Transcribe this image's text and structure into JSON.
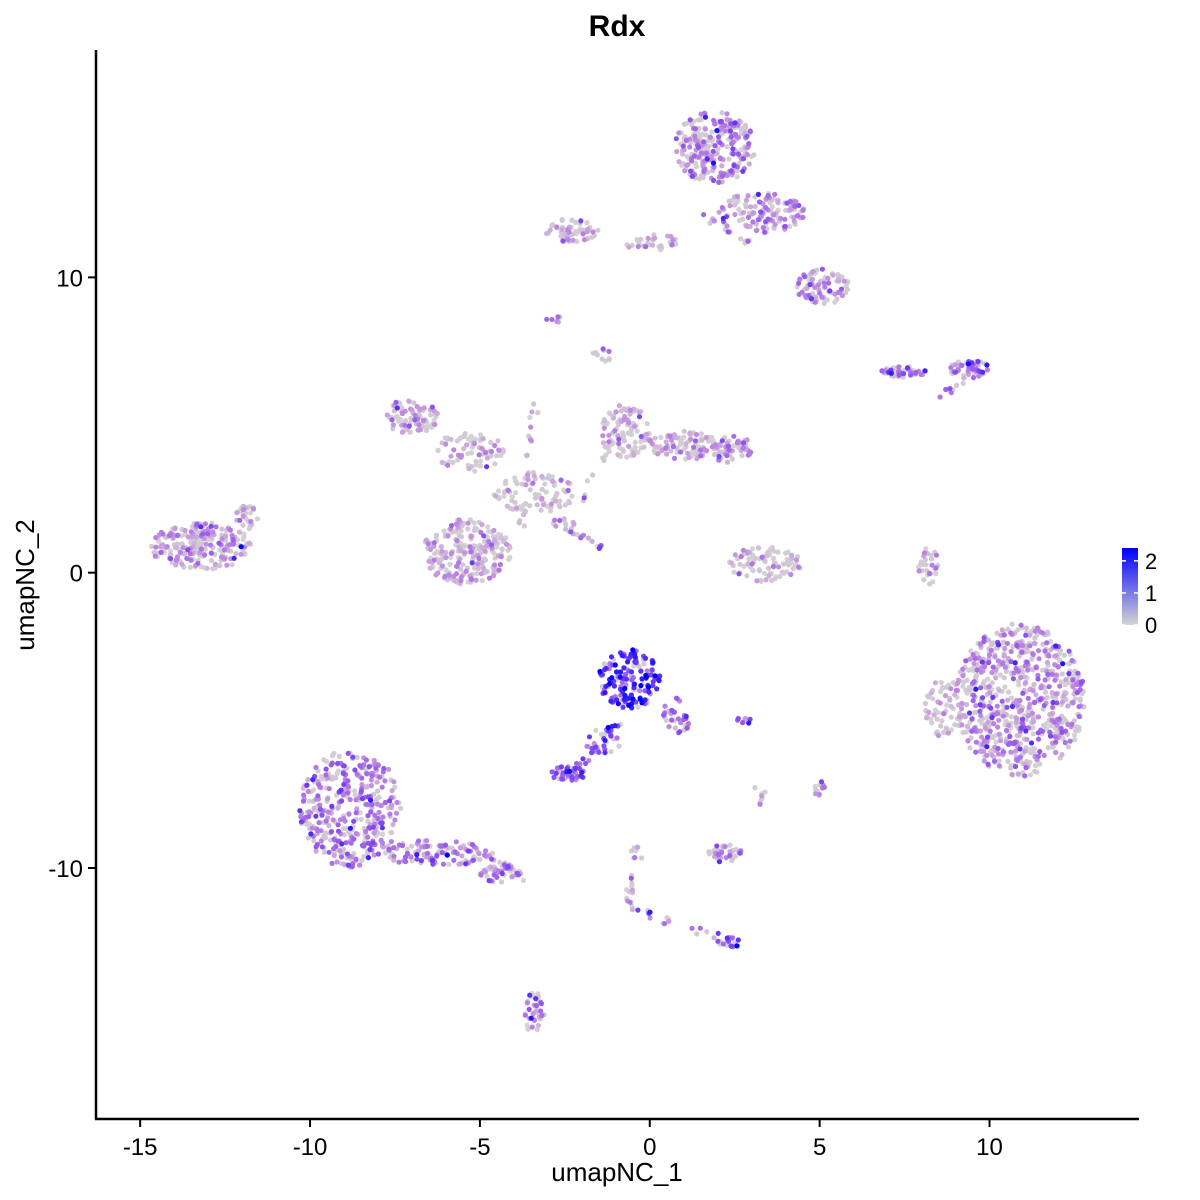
{
  "chart_data": {
    "type": "scatter",
    "title": "Rdx",
    "xlabel": "umapNC_1",
    "ylabel": "umapNC_2",
    "xlim": [
      -16.3,
      14.4
    ],
    "ylim": [
      -18.5,
      17.7
    ],
    "x_ticks": [
      -15,
      -10,
      -5,
      0,
      5,
      10
    ],
    "x_tick_labels": [
      "-15",
      "-10",
      "-5",
      "0",
      "5",
      "10"
    ],
    "y_ticks": [
      -10,
      0,
      10
    ],
    "y_tick_labels": [
      "-10",
      "0",
      "10"
    ],
    "grid": false,
    "color_scale": {
      "variable": "expression",
      "low_color": "#d3d3d3",
      "high_color": "#0000ff",
      "range": [
        0,
        2.4
      ],
      "breaks": [
        0,
        1,
        2
      ],
      "break_labels": [
        "0",
        "1",
        "2"
      ],
      "legend_position": "right"
    },
    "clusters": [
      {
        "cx": 10.9,
        "cy": -4.3,
        "rx": 1.9,
        "ry": 2.6,
        "n": 700,
        "mean_expr": 0.75
      },
      {
        "cx": 8.7,
        "cy": -4.6,
        "rx": 0.6,
        "ry": 1.0,
        "n": 60,
        "mean_expr": 0.4
      },
      {
        "cx": -8.8,
        "cy": -8.0,
        "rx": 1.5,
        "ry": 2.0,
        "n": 380,
        "mean_expr": 1.05
      },
      {
        "cx": -6.3,
        "cy": -9.5,
        "rx": 1.5,
        "ry": 0.45,
        "n": 110,
        "mean_expr": 0.95
      },
      {
        "cx": -4.4,
        "cy": -10.2,
        "rx": 0.6,
        "ry": 0.3,
        "n": 35,
        "mean_expr": 1.0
      },
      {
        "cx": -13.2,
        "cy": 0.9,
        "rx": 1.5,
        "ry": 0.8,
        "n": 220,
        "mean_expr": 0.7
      },
      {
        "cx": -11.9,
        "cy": 1.8,
        "rx": 0.4,
        "ry": 0.5,
        "n": 25,
        "mean_expr": 0.6
      },
      {
        "cx": -0.6,
        "cy": -3.6,
        "rx": 0.9,
        "ry": 1.0,
        "n": 150,
        "mean_expr": 1.85
      },
      {
        "cx": 0.8,
        "cy": -4.8,
        "rx": 0.4,
        "ry": 0.7,
        "n": 30,
        "mean_expr": 1.3
      },
      {
        "cx": -1.4,
        "cy": -5.8,
        "rx": 0.5,
        "ry": 0.5,
        "n": 25,
        "mean_expr": 1.4
      },
      {
        "cx": -2.4,
        "cy": -6.8,
        "rx": 0.5,
        "ry": 0.25,
        "n": 50,
        "mean_expr": 1.5
      },
      {
        "cx": -5.4,
        "cy": 0.7,
        "rx": 1.3,
        "ry": 1.1,
        "n": 230,
        "mean_expr": 0.55
      },
      {
        "cx": -7.0,
        "cy": 5.3,
        "rx": 0.8,
        "ry": 0.6,
        "n": 80,
        "mean_expr": 0.6
      },
      {
        "cx": -5.3,
        "cy": 4.1,
        "rx": 1.0,
        "ry": 0.7,
        "n": 70,
        "mean_expr": 0.4
      },
      {
        "cx": -3.4,
        "cy": 2.7,
        "rx": 1.2,
        "ry": 0.7,
        "n": 90,
        "mean_expr": 0.3
      },
      {
        "cx": -0.7,
        "cy": 4.8,
        "rx": 0.8,
        "ry": 0.9,
        "n": 90,
        "mean_expr": 0.45
      },
      {
        "cx": 1.0,
        "cy": 4.3,
        "rx": 1.0,
        "ry": 0.5,
        "n": 90,
        "mean_expr": 0.5
      },
      {
        "cx": 2.4,
        "cy": 4.2,
        "rx": 0.6,
        "ry": 0.5,
        "n": 60,
        "mean_expr": 0.7
      },
      {
        "cx": 3.4,
        "cy": 0.3,
        "rx": 1.1,
        "ry": 0.6,
        "n": 90,
        "mean_expr": 0.35
      },
      {
        "cx": 1.9,
        "cy": 14.4,
        "rx": 1.2,
        "ry": 1.2,
        "n": 260,
        "mean_expr": 0.85
      },
      {
        "cx": 3.3,
        "cy": 12.2,
        "rx": 1.3,
        "ry": 0.7,
        "n": 130,
        "mean_expr": 0.8
      },
      {
        "cx": 5.1,
        "cy": 9.7,
        "rx": 0.8,
        "ry": 0.6,
        "n": 80,
        "mean_expr": 0.85
      },
      {
        "cx": -2.3,
        "cy": 11.6,
        "rx": 0.8,
        "ry": 0.4,
        "n": 55,
        "mean_expr": 0.6
      },
      {
        "cx": 0.0,
        "cy": 11.2,
        "rx": 0.9,
        "ry": 0.3,
        "n": 30,
        "mean_expr": 0.45
      },
      {
        "cx": 7.5,
        "cy": 6.8,
        "rx": 0.7,
        "ry": 0.2,
        "n": 45,
        "mean_expr": 1.15
      },
      {
        "cx": 9.4,
        "cy": 6.9,
        "rx": 0.6,
        "ry": 0.3,
        "n": 50,
        "mean_expr": 1.2
      },
      {
        "cx": 8.2,
        "cy": 0.2,
        "rx": 0.3,
        "ry": 0.7,
        "n": 30,
        "mean_expr": 0.3
      },
      {
        "cx": 2.2,
        "cy": -9.5,
        "rx": 0.5,
        "ry": 0.3,
        "n": 35,
        "mean_expr": 1.0
      },
      {
        "cx": -3.4,
        "cy": -14.9,
        "rx": 0.3,
        "ry": 0.7,
        "n": 35,
        "mean_expr": 1.0
      },
      {
        "cx": 2.4,
        "cy": -12.5,
        "rx": 0.4,
        "ry": 0.2,
        "n": 15,
        "mean_expr": 1.2
      },
      {
        "cx": 5.0,
        "cy": -7.3,
        "rx": 0.15,
        "ry": 0.3,
        "n": 12,
        "mean_expr": 1.0
      },
      {
        "cx": -1.4,
        "cy": 7.3,
        "rx": 0.3,
        "ry": 0.3,
        "n": 10,
        "mean_expr": 0.6
      },
      {
        "cx": -2.8,
        "cy": 8.6,
        "rx": 0.25,
        "ry": 0.2,
        "n": 8,
        "mean_expr": 0.9
      },
      {
        "cx": 2.8,
        "cy": -5.0,
        "rx": 0.3,
        "ry": 0.1,
        "n": 8,
        "mean_expr": 1.2
      }
    ],
    "paths": [
      {
        "from": [
          -2.8,
          1.9
        ],
        "to": [
          -1.4,
          0.8
        ],
        "n": 25,
        "mean_expr": 0.8
      },
      {
        "from": [
          -0.4,
          -9.1
        ],
        "to": [
          -0.6,
          -11.3
        ],
        "n": 20,
        "mean_expr": 0.5
      },
      {
        "from": [
          -0.6,
          -11.3
        ],
        "to": [
          2.6,
          -12.6
        ],
        "n": 22,
        "mean_expr": 0.9
      },
      {
        "from": [
          -4.9,
          -9.4
        ],
        "to": [
          -3.7,
          -10.4
        ],
        "n": 20,
        "mean_expr": 1.0
      },
      {
        "from": [
          -3.8,
          1.4
        ],
        "to": [
          -3.4,
          5.9
        ],
        "n": 18,
        "mean_expr": 0.35
      },
      {
        "from": [
          -2.0,
          2.3
        ],
        "to": [
          -0.6,
          5.8
        ],
        "n": 20,
        "mean_expr": 0.4
      },
      {
        "from": [
          -0.8,
          -5.0
        ],
        "to": [
          -2.1,
          -6.6
        ],
        "n": 18,
        "mean_expr": 1.5
      },
      {
        "from": [
          8.6,
          6.0
        ],
        "to": [
          9.3,
          6.6
        ],
        "n": 10,
        "mean_expr": 0.8
      },
      {
        "from": [
          1.6,
          12.1
        ],
        "to": [
          3.0,
          11.1
        ],
        "n": 15,
        "mean_expr": 0.7
      },
      {
        "from": [
          3.2,
          -7.8
        ],
        "to": [
          3.3,
          -7.3
        ],
        "n": 8,
        "mean_expr": 0.3
      }
    ]
  }
}
